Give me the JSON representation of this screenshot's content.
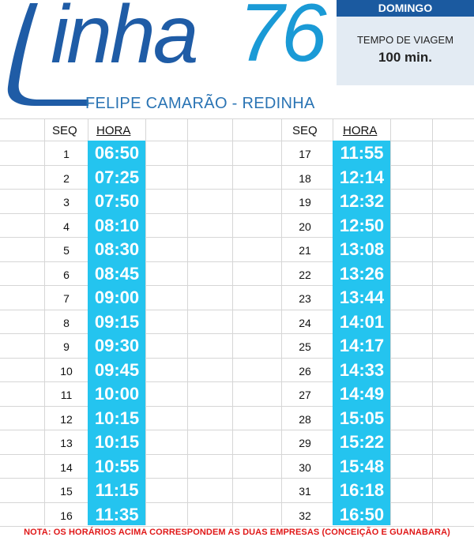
{
  "header": {
    "logo_word": "inha",
    "logo_number": "76",
    "route": "FELIPE CAMARÃO - REDINHA"
  },
  "info": {
    "day": "DOMINGO",
    "travel_time_label": "TEMPO DE VIAGEM",
    "travel_time_value": "100 min."
  },
  "table": {
    "seq_header": "SEQ",
    "hora_header": "HORA",
    "left": [
      {
        "seq": "1",
        "hora": "06:50"
      },
      {
        "seq": "2",
        "hora": "07:25"
      },
      {
        "seq": "3",
        "hora": "07:50"
      },
      {
        "seq": "4",
        "hora": "08:10"
      },
      {
        "seq": "5",
        "hora": "08:30"
      },
      {
        "seq": "6",
        "hora": "08:45"
      },
      {
        "seq": "7",
        "hora": "09:00"
      },
      {
        "seq": "8",
        "hora": "09:15"
      },
      {
        "seq": "9",
        "hora": "09:30"
      },
      {
        "seq": "10",
        "hora": "09:45"
      },
      {
        "seq": "11",
        "hora": "10:00"
      },
      {
        "seq": "12",
        "hora": "10:15"
      },
      {
        "seq": "13",
        "hora": "10:15"
      },
      {
        "seq": "14",
        "hora": "10:55"
      },
      {
        "seq": "15",
        "hora": "11:15"
      },
      {
        "seq": "16",
        "hora": "11:35"
      }
    ],
    "right": [
      {
        "seq": "17",
        "hora": "11:55"
      },
      {
        "seq": "18",
        "hora": "12:14"
      },
      {
        "seq": "19",
        "hora": "12:32"
      },
      {
        "seq": "20",
        "hora": "12:50"
      },
      {
        "seq": "21",
        "hora": "13:08"
      },
      {
        "seq": "22",
        "hora": "13:26"
      },
      {
        "seq": "23",
        "hora": "13:44"
      },
      {
        "seq": "24",
        "hora": "14:01"
      },
      {
        "seq": "25",
        "hora": "14:17"
      },
      {
        "seq": "26",
        "hora": "14:33"
      },
      {
        "seq": "27",
        "hora": "14:49"
      },
      {
        "seq": "28",
        "hora": "15:05"
      },
      {
        "seq": "29",
        "hora": "15:22"
      },
      {
        "seq": "30",
        "hora": "15:48"
      },
      {
        "seq": "31",
        "hora": "16:18"
      },
      {
        "seq": "32",
        "hora": "16:50"
      }
    ]
  },
  "note": "NOTA: OS HORÁRIOS ACIMA CORRESPONDEM AS DUAS EMPRESAS (CONCEIÇÃO E GUANABARA)",
  "colors": {
    "brand_dark": "#1f5ca6",
    "brand_light": "#1a9ad6",
    "time_highlight": "#24c4ef",
    "note_red": "#e01818"
  }
}
